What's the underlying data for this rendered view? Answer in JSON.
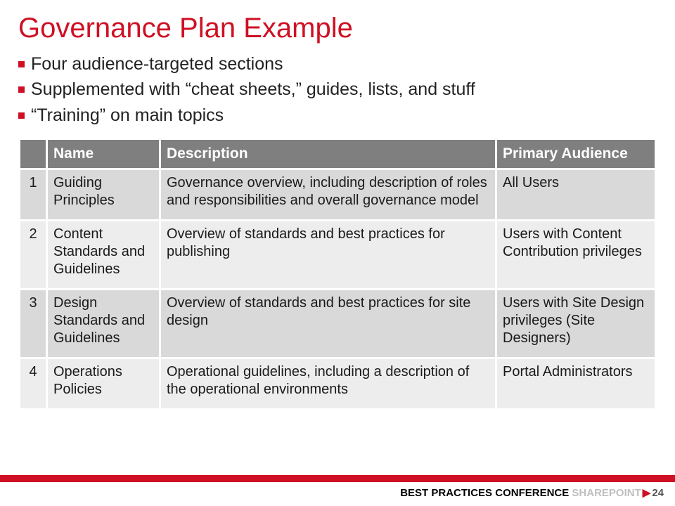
{
  "title": "Governance Plan Example",
  "bullets": [
    "Four audience-targeted sections",
    "Supplemented with “cheat sheets,” guides, lists, and stuff",
    "“Training” on main topics"
  ],
  "table": {
    "headers": {
      "num": "",
      "name": "Name",
      "desc": "Description",
      "aud": "Primary Audience"
    },
    "rows": [
      {
        "num": "1",
        "name": "Guiding Principles",
        "desc": "Governance overview, including description of roles and responsibilities and overall governance model",
        "aud": "All Users"
      },
      {
        "num": "2",
        "name": "Content Standards and Guidelines",
        "desc": "Overview of standards and best practices for publishing",
        "aud": "Users with Content Contribution privileges"
      },
      {
        "num": "3",
        "name": "Design Standards and Guidelines",
        "desc": "Overview of standards and best practices for site design",
        "aud": "Users with Site Design privileges (Site Designers)"
      },
      {
        "num": "4",
        "name": "Operations Policies",
        "desc": "Operational guidelines, including a description of the operational environments",
        "aud": "Portal Administrators"
      }
    ],
    "row_shades": [
      "r-dark",
      "r-light",
      "r-dark",
      "r-light"
    ]
  },
  "footer": {
    "best_practices": "BEST PRACTICES",
    "conference": "CONFERENCE",
    "sharepoint": "SHAREPOINT",
    "page": "24"
  },
  "colors": {
    "accent_red": "#cf1024",
    "header_gray": "#7f7f7f",
    "row_dark": "#d9d9d9",
    "row_light": "#ededed",
    "sharepoint_gray": "#bfbfbf"
  }
}
